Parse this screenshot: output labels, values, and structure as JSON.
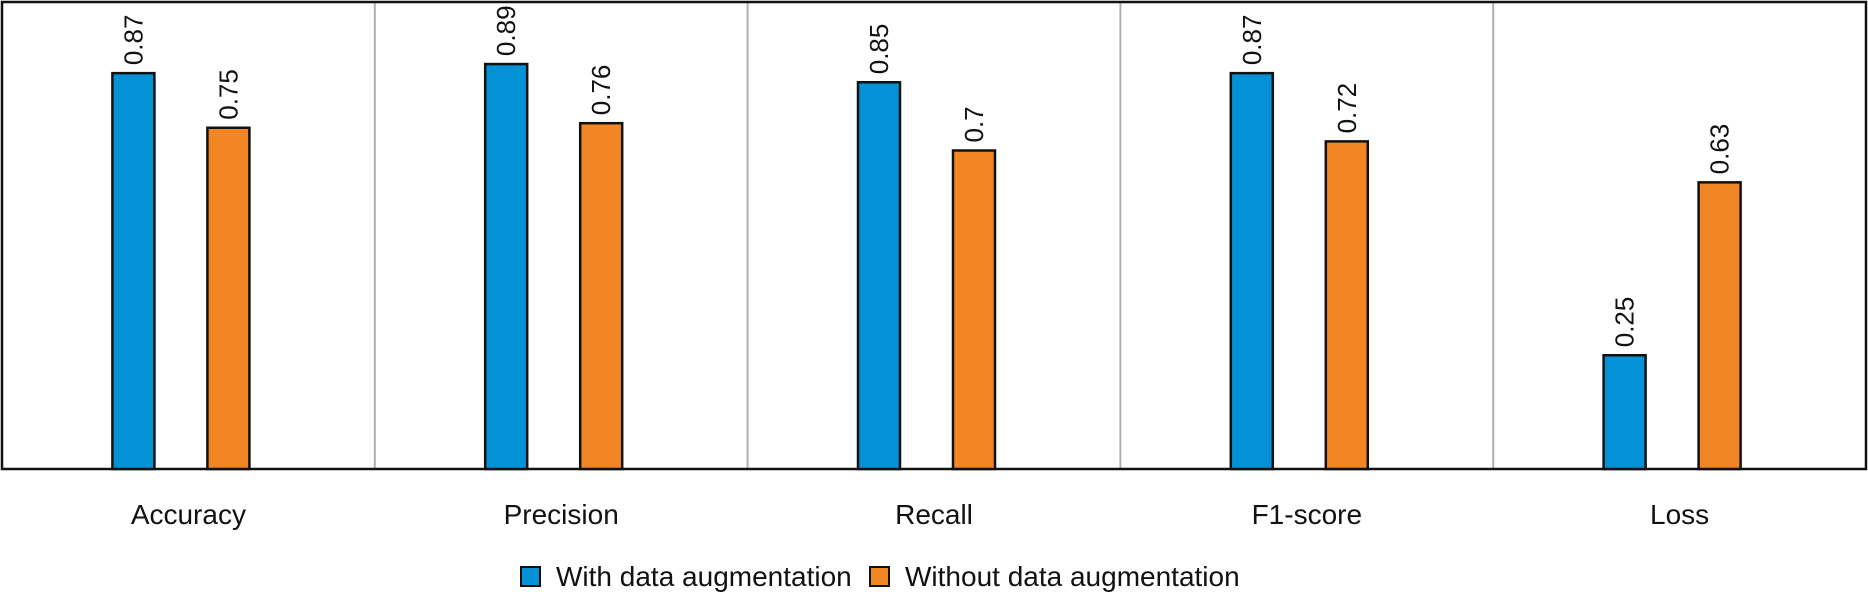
{
  "chart_data": {
    "type": "bar",
    "title": "",
    "xlabel": "",
    "ylabel": "",
    "categories": [
      "Accuracy",
      "Precision",
      "Recall",
      "F1-score",
      "Loss"
    ],
    "series": [
      {
        "name": "With data augmentation",
        "color": "#0591d6",
        "values": [
          0.87,
          0.89,
          0.85,
          0.87,
          0.25
        ]
      },
      {
        "name": "Without data augmentation",
        "color": "#f28524",
        "values": [
          0.75,
          0.76,
          0.7,
          0.72,
          0.63
        ]
      }
    ],
    "value_labels": [
      [
        "0.87",
        "0.89",
        "0.85",
        "0.87",
        "0.25"
      ],
      [
        "0.75",
        "0.76",
        "0.7",
        "0.72",
        "0.63"
      ]
    ],
    "ylim": [
      0,
      1
    ],
    "grid": "vertical separators between categories",
    "legend_position": "bottom-center"
  }
}
